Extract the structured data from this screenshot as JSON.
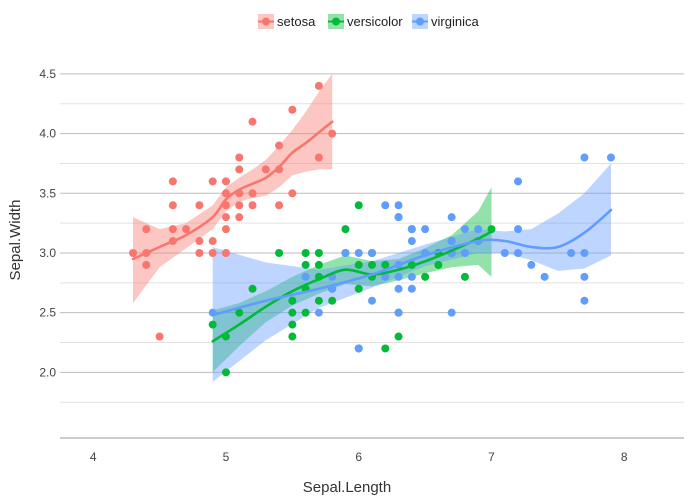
{
  "chart_data": {
    "type": "scatter",
    "title": "",
    "xlabel": "Sepal.Length",
    "ylabel": "Sepal.Width",
    "xlim": [
      3.75,
      8.45
    ],
    "ylim": [
      1.45,
      4.6
    ],
    "x_ticks": [
      4,
      5,
      6,
      7,
      8
    ],
    "y_ticks": [
      2.0,
      2.5,
      3.0,
      3.5,
      4.0,
      4.5
    ],
    "y_tick_labels": [
      "2.0",
      "2.5",
      "3.0",
      "3.5",
      "4.0",
      "4.5"
    ],
    "grid": true,
    "legend": {
      "placement": "top-center"
    },
    "smoothing": "loess with confidence band",
    "series": [
      {
        "name": "setosa",
        "color": "#F8766D",
        "points": [
          [
            4.3,
            3.0
          ],
          [
            4.4,
            2.9
          ],
          [
            4.4,
            3.0
          ],
          [
            4.4,
            3.2
          ],
          [
            4.5,
            2.3
          ],
          [
            4.6,
            3.1
          ],
          [
            4.6,
            3.2
          ],
          [
            4.6,
            3.4
          ],
          [
            4.6,
            3.6
          ],
          [
            4.7,
            3.2
          ],
          [
            4.8,
            3.0
          ],
          [
            4.8,
            3.1
          ],
          [
            4.8,
            3.4
          ],
          [
            4.9,
            3.0
          ],
          [
            4.9,
            3.1
          ],
          [
            4.9,
            3.6
          ],
          [
            5.0,
            3.0
          ],
          [
            5.0,
            3.2
          ],
          [
            5.0,
            3.3
          ],
          [
            5.0,
            3.4
          ],
          [
            5.0,
            3.5
          ],
          [
            5.0,
            3.6
          ],
          [
            5.1,
            3.3
          ],
          [
            5.1,
            3.4
          ],
          [
            5.1,
            3.5
          ],
          [
            5.1,
            3.7
          ],
          [
            5.1,
            3.8
          ],
          [
            5.2,
            3.4
          ],
          [
            5.2,
            3.5
          ],
          [
            5.2,
            4.1
          ],
          [
            5.3,
            3.7
          ],
          [
            5.4,
            3.4
          ],
          [
            5.4,
            3.7
          ],
          [
            5.4,
            3.9
          ],
          [
            5.5,
            3.5
          ],
          [
            5.5,
            4.2
          ],
          [
            5.7,
            3.8
          ],
          [
            5.7,
            4.4
          ],
          [
            5.8,
            4.0
          ]
        ],
        "fit": [
          [
            4.3,
            2.95
          ],
          [
            4.5,
            3.05
          ],
          [
            4.7,
            3.15
          ],
          [
            4.9,
            3.3
          ],
          [
            5.0,
            3.45
          ],
          [
            5.1,
            3.53
          ],
          [
            5.2,
            3.58
          ],
          [
            5.3,
            3.63
          ],
          [
            5.4,
            3.72
          ],
          [
            5.5,
            3.84
          ],
          [
            5.6,
            3.92
          ],
          [
            5.7,
            4.01
          ],
          [
            5.8,
            4.1
          ]
        ],
        "band_upper": [
          3.3,
          3.2,
          3.25,
          3.4,
          3.55,
          3.63,
          3.7,
          3.78,
          3.9,
          4.03,
          4.18,
          4.35,
          4.5
        ],
        "band_lower": [
          2.58,
          2.88,
          3.04,
          3.2,
          3.35,
          3.43,
          3.46,
          3.48,
          3.55,
          3.65,
          3.68,
          3.7,
          3.7
        ]
      },
      {
        "name": "versicolor",
        "color": "#00BA38",
        "points": [
          [
            4.9,
            2.4
          ],
          [
            5.0,
            2.0
          ],
          [
            5.0,
            2.3
          ],
          [
            5.1,
            2.5
          ],
          [
            5.2,
            2.7
          ],
          [
            5.4,
            3.0
          ],
          [
            5.5,
            2.3
          ],
          [
            5.5,
            2.4
          ],
          [
            5.5,
            2.5
          ],
          [
            5.5,
            2.6
          ],
          [
            5.6,
            2.5
          ],
          [
            5.6,
            2.7
          ],
          [
            5.6,
            2.9
          ],
          [
            5.6,
            3.0
          ],
          [
            5.7,
            2.6
          ],
          [
            5.7,
            2.8
          ],
          [
            5.7,
            2.9
          ],
          [
            5.7,
            3.0
          ],
          [
            5.8,
            2.6
          ],
          [
            5.8,
            2.7
          ],
          [
            5.9,
            3.0
          ],
          [
            5.9,
            3.2
          ],
          [
            6.0,
            2.2
          ],
          [
            6.0,
            2.7
          ],
          [
            6.0,
            2.9
          ],
          [
            6.0,
            3.4
          ],
          [
            6.1,
            2.8
          ],
          [
            6.1,
            2.9
          ],
          [
            6.1,
            3.0
          ],
          [
            6.2,
            2.2
          ],
          [
            6.2,
            2.9
          ],
          [
            6.3,
            2.3
          ],
          [
            6.3,
            2.5
          ],
          [
            6.3,
            3.3
          ],
          [
            6.4,
            2.9
          ],
          [
            6.4,
            3.2
          ],
          [
            6.5,
            2.8
          ],
          [
            6.6,
            2.9
          ],
          [
            6.6,
            3.0
          ],
          [
            6.7,
            3.0
          ],
          [
            6.7,
            3.1
          ],
          [
            6.8,
            2.8
          ],
          [
            6.9,
            3.1
          ],
          [
            7.0,
            3.2
          ]
        ],
        "fit": [
          [
            4.9,
            2.26
          ],
          [
            5.1,
            2.4
          ],
          [
            5.3,
            2.55
          ],
          [
            5.5,
            2.68
          ],
          [
            5.7,
            2.78
          ],
          [
            5.9,
            2.86
          ],
          [
            6.1,
            2.82
          ],
          [
            6.3,
            2.86
          ],
          [
            6.5,
            2.93
          ],
          [
            6.7,
            3.02
          ],
          [
            6.9,
            3.12
          ],
          [
            7.0,
            3.18
          ]
        ],
        "band_upper": [
          2.52,
          2.58,
          2.68,
          2.8,
          2.9,
          2.98,
          2.93,
          2.95,
          3.04,
          3.15,
          3.35,
          3.55
        ],
        "band_lower": [
          2.0,
          2.22,
          2.42,
          2.56,
          2.66,
          2.74,
          2.72,
          2.77,
          2.83,
          2.88,
          2.9,
          2.8
        ]
      },
      {
        "name": "virginica",
        "color": "#619CFF",
        "points": [
          [
            4.9,
            2.5
          ],
          [
            5.6,
            2.8
          ],
          [
            5.7,
            2.5
          ],
          [
            5.8,
            2.7
          ],
          [
            5.8,
            2.8
          ],
          [
            5.9,
            3.0
          ],
          [
            6.0,
            2.2
          ],
          [
            6.0,
            3.0
          ],
          [
            6.1,
            2.6
          ],
          [
            6.1,
            3.0
          ],
          [
            6.2,
            2.8
          ],
          [
            6.2,
            3.4
          ],
          [
            6.3,
            2.5
          ],
          [
            6.3,
            2.7
          ],
          [
            6.3,
            2.8
          ],
          [
            6.3,
            2.9
          ],
          [
            6.3,
            3.3
          ],
          [
            6.3,
            3.4
          ],
          [
            6.4,
            2.7
          ],
          [
            6.4,
            2.8
          ],
          [
            6.4,
            3.1
          ],
          [
            6.4,
            3.2
          ],
          [
            6.5,
            3.0
          ],
          [
            6.5,
            3.2
          ],
          [
            6.7,
            2.5
          ],
          [
            6.7,
            3.0
          ],
          [
            6.7,
            3.1
          ],
          [
            6.7,
            3.3
          ],
          [
            6.8,
            3.0
          ],
          [
            6.8,
            3.2
          ],
          [
            6.9,
            3.1
          ],
          [
            6.9,
            3.2
          ],
          [
            7.1,
            3.0
          ],
          [
            7.2,
            3.0
          ],
          [
            7.2,
            3.2
          ],
          [
            7.2,
            3.6
          ],
          [
            7.3,
            2.9
          ],
          [
            7.4,
            2.8
          ],
          [
            7.6,
            3.0
          ],
          [
            7.7,
            2.6
          ],
          [
            7.7,
            2.8
          ],
          [
            7.7,
            3.0
          ],
          [
            7.7,
            3.8
          ],
          [
            7.9,
            3.8
          ]
        ],
        "fit": [
          [
            4.9,
            2.48
          ],
          [
            5.3,
            2.6
          ],
          [
            5.7,
            2.7
          ],
          [
            6.1,
            2.82
          ],
          [
            6.5,
            2.98
          ],
          [
            6.9,
            3.1
          ],
          [
            7.1,
            3.1
          ],
          [
            7.3,
            3.05
          ],
          [
            7.5,
            3.05
          ],
          [
            7.7,
            3.17
          ],
          [
            7.9,
            3.36
          ]
        ],
        "band_upper": [
          3.05,
          2.92,
          2.86,
          2.93,
          3.07,
          3.2,
          3.18,
          3.2,
          3.33,
          3.5,
          3.75
        ],
        "band_lower": [
          1.92,
          2.27,
          2.54,
          2.71,
          2.89,
          3.0,
          3.0,
          2.94,
          2.85,
          2.87,
          2.98
        ]
      }
    ]
  }
}
